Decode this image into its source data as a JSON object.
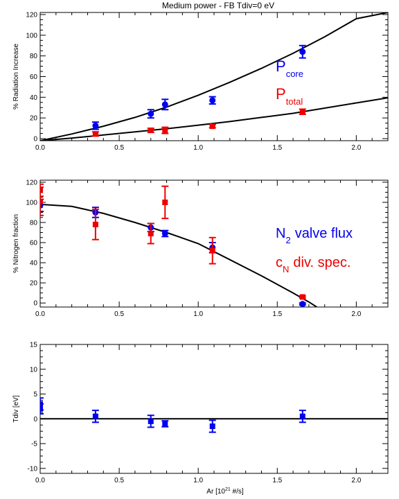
{
  "figure_title": "Medium power - FB Tdiv=0 eV",
  "colors": {
    "blue": "#0000ee",
    "red": "#ee0000",
    "black": "#000000"
  },
  "chart_data": [
    {
      "type": "scatter",
      "ylabel": "% Radiation Increase",
      "xlim": [
        0,
        2.2
      ],
      "ylim": [
        -2,
        122
      ],
      "xticks": [
        0.0,
        0.5,
        1.0,
        1.5,
        2.0
      ],
      "xtick_labels": [
        "0.0",
        "0.5",
        "1.0",
        "1.5",
        "2.0"
      ],
      "yticks": [
        0,
        20,
        40,
        60,
        80,
        100,
        120
      ],
      "ytick_labels": [
        "0",
        "20",
        "40",
        "60",
        "80",
        "100",
        "120"
      ],
      "series": [
        {
          "name": "P core",
          "color": "#0000ee",
          "marker": "circle",
          "x": [
            0.35,
            0.7,
            0.79,
            1.09,
            1.66
          ],
          "y": [
            12.5,
            24,
            33,
            37,
            84
          ],
          "err": [
            3.5,
            4,
            5,
            3.5,
            6
          ]
        },
        {
          "name": "P total",
          "color": "#ee0000",
          "marker": "square",
          "x": [
            0.35,
            0.7,
            0.79,
            1.09,
            1.66
          ],
          "y": [
            4.5,
            8,
            8,
            12,
            26
          ],
          "err": [
            2,
            2,
            3,
            1.5,
            2.5
          ]
        }
      ],
      "fits": [
        {
          "x": [
            0,
            0.2,
            0.4,
            0.6,
            0.8,
            1.0,
            1.2,
            1.4,
            1.6,
            1.8,
            2.0,
            2.2
          ],
          "y": [
            -2,
            4.5,
            12,
            20.5,
            30.5,
            42,
            54.5,
            68,
            82.5,
            98.5,
            116,
            122
          ]
        },
        {
          "x": [
            0,
            0.2,
            0.4,
            0.6,
            0.8,
            1.0,
            1.2,
            1.4,
            1.6,
            1.8,
            2.0,
            2.2
          ],
          "y": [
            -2,
            0.5,
            3.5,
            6.5,
            9.5,
            13,
            16.5,
            20.5,
            24.5,
            29.5,
            34.5,
            39.5
          ]
        }
      ],
      "legend": [
        {
          "main": "P",
          "sub": "core",
          "color": "#0000ee"
        },
        {
          "main": "P",
          "sub": "total",
          "color": "#ee0000"
        }
      ]
    },
    {
      "type": "scatter",
      "ylabel": "% Nitrogen fraction",
      "xlim": [
        0,
        2.2
      ],
      "ylim": [
        -4,
        122
      ],
      "xticks": [
        0.0,
        0.5,
        1.0,
        1.5,
        2.0
      ],
      "xtick_labels": [
        "0.0",
        "0.5",
        "1.0",
        "1.5",
        "2.0"
      ],
      "yticks": [
        0,
        20,
        40,
        60,
        80,
        100,
        120
      ],
      "ytick_labels": [
        "0",
        "20",
        "40",
        "60",
        "80",
        "100",
        "120"
      ],
      "series": [
        {
          "name": "N2 valve flux",
          "color": "#0000ee",
          "marker": "circle",
          "x": [
            0.0,
            0.35,
            0.7,
            0.79,
            1.09,
            1.66
          ],
          "y": [
            97,
            90,
            75,
            69,
            55,
            -1
          ],
          "err": [
            6,
            5,
            4,
            3,
            5,
            1
          ]
        },
        {
          "name": "cN div. spec.",
          "color": "#ee0000",
          "marker": "square",
          "x": [
            0.0,
            0.0,
            0.35,
            0.7,
            0.79,
            1.09,
            1.66
          ],
          "y": [
            112,
            101,
            78,
            69,
            100,
            52,
            6
          ],
          "err": [
            6,
            14,
            15,
            10,
            16,
            13,
            1
          ]
        }
      ],
      "fits": [
        {
          "x": [
            0,
            0.2,
            0.4,
            0.6,
            0.8,
            1.0,
            1.2,
            1.4,
            1.6,
            1.7,
            1.75
          ],
          "y": [
            98,
            96,
            89,
            80,
            70,
            59,
            43,
            27,
            10,
            1,
            -4
          ]
        }
      ],
      "legend": [
        {
          "main": "N",
          "sub": "2",
          "rest": "valve flux",
          "color": "#0000ee"
        },
        {
          "main": "c",
          "sub": "N",
          "rest": "div. spec.",
          "color": "#ee0000"
        }
      ]
    },
    {
      "type": "scatter",
      "ylabel": "Tdiv [eV]",
      "xlabel_pre": "Ar [10",
      "xlabel_sup": "21",
      "xlabel_post": " #/s]",
      "xlim": [
        0,
        2.2
      ],
      "ylim": [
        -11,
        15
      ],
      "xticks": [
        0.0,
        0.5,
        1.0,
        1.5,
        2.0
      ],
      "xtick_labels": [
        "0.0",
        "0.5",
        "1.0",
        "1.5",
        "2.0"
      ],
      "yticks": [
        -10,
        -5,
        0,
        5,
        10,
        15
      ],
      "ytick_labels": [
        "-10",
        "-5",
        "0",
        "5",
        "10",
        "15"
      ],
      "hline": 0,
      "series": [
        {
          "name": "",
          "color": "#0000ee",
          "marker": "square",
          "x": [
            0.0,
            0.0,
            0.35,
            0.7,
            0.79,
            1.09,
            1.66
          ],
          "y": [
            3,
            2,
            0.5,
            -0.5,
            -1,
            -1.5,
            0.5
          ],
          "err": [
            1.2,
            1,
            1.2,
            1.2,
            0.6,
            1.2,
            1.2
          ]
        }
      ]
    }
  ]
}
